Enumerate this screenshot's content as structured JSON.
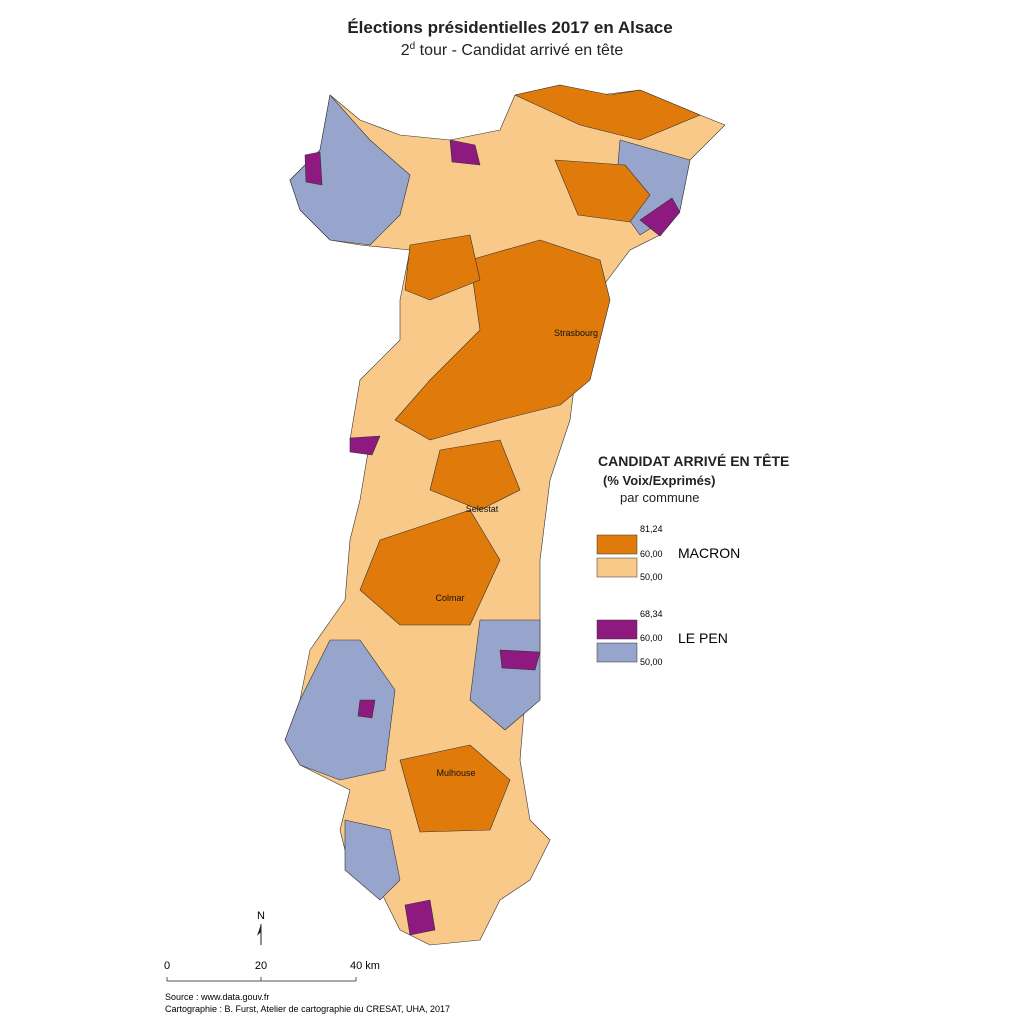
{
  "header": {
    "title": "Élections présidentielles 2017 en Alsace",
    "subtitle": {
      "ordinal": "2",
      "superscript": "d",
      "text": " tour - Candidat arrivé en tête"
    }
  },
  "cities": [
    "Strasbourg",
    "Selestat",
    "Colmar",
    "Mulhouse"
  ],
  "legend": {
    "title": "CANDIDAT ARRIVÉ EN TÊTE",
    "subtitle": "(% Voix/Exprimés)",
    "unit": "par commune",
    "groups": [
      {
        "name": "MACRON",
        "breaks": [
          "81,24",
          "60,00",
          "50,00"
        ]
      },
      {
        "name": "LE PEN",
        "breaks": [
          "68,34",
          "60,00",
          "50,00"
        ]
      }
    ]
  },
  "north": "N",
  "scale": [
    "0",
    "20",
    "40 km"
  ],
  "footer": {
    "source": "Source : www.data.gouv.fr",
    "credit": "Cartographie : B. Furst, Atelier de cartographie du CRESAT, UHA, 2017"
  }
}
